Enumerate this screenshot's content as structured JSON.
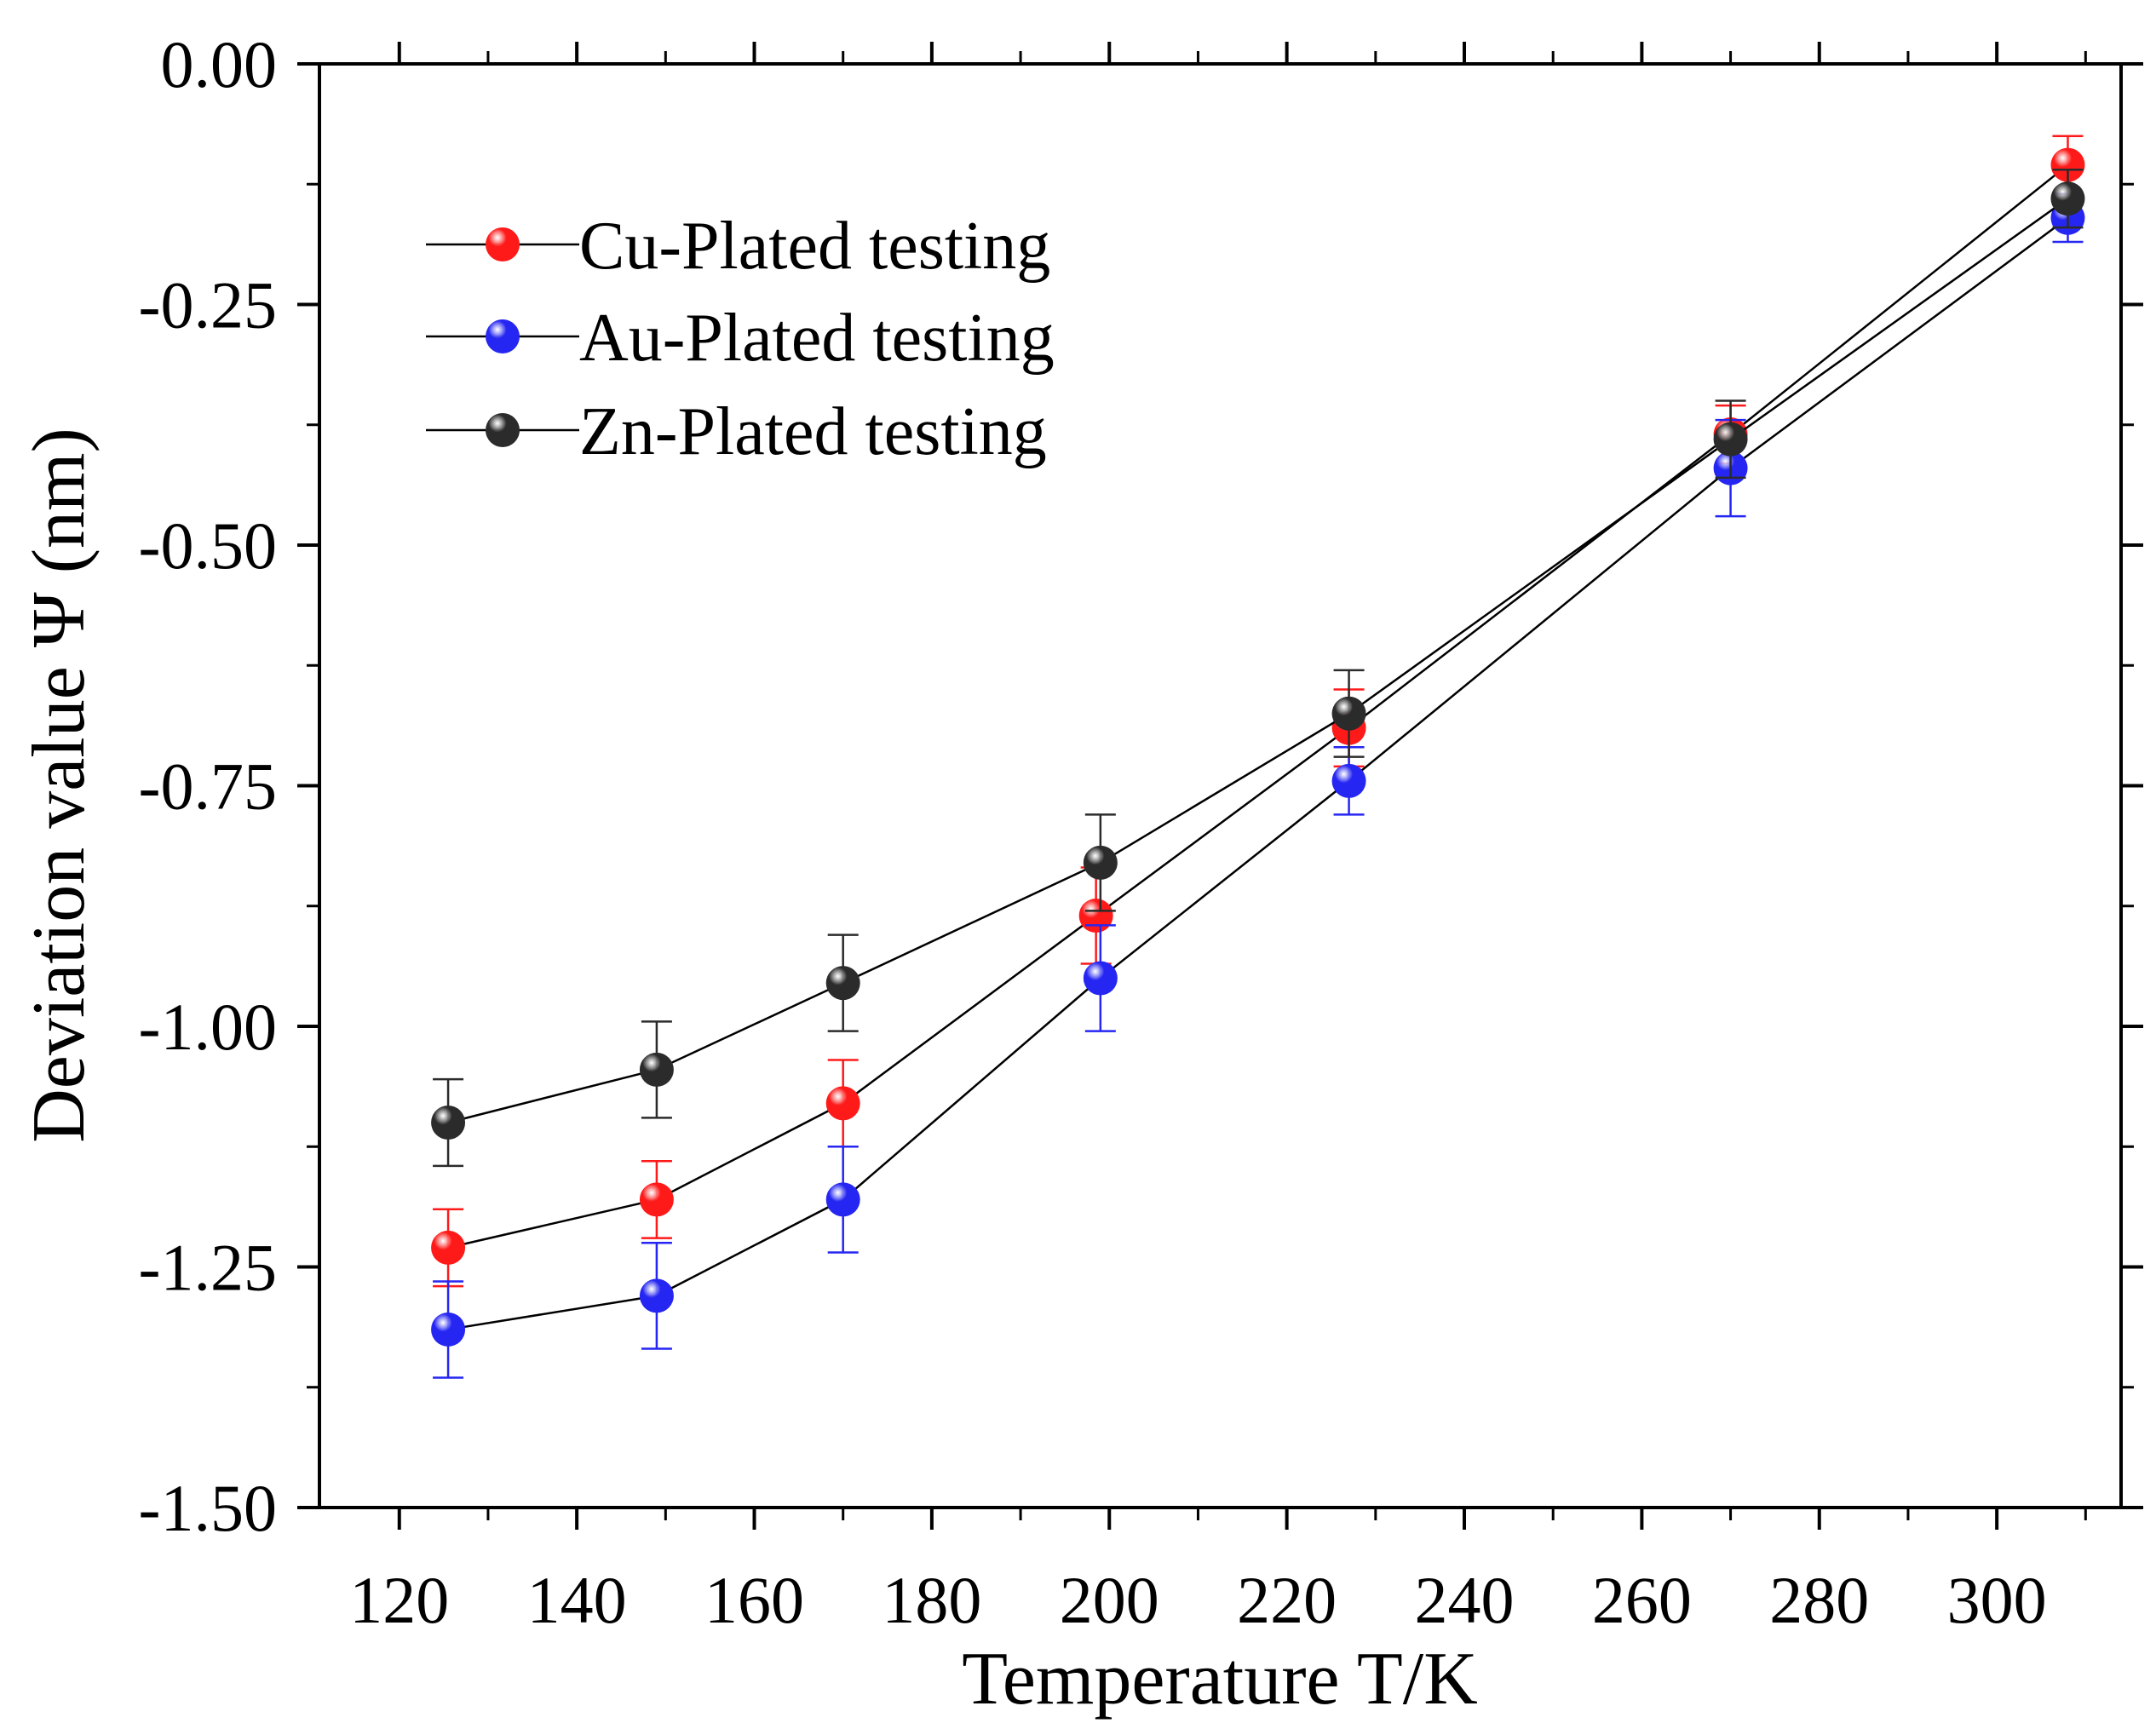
{
  "chart_data": {
    "type": "line",
    "title": "",
    "xlabel": "Temperature T/K",
    "ylabel": "Deviation value Ψ (nm)",
    "xlim": [
      111,
      314
    ],
    "ylim": [
      -1.5,
      0.0
    ],
    "x_ticks": [
      120,
      140,
      160,
      180,
      200,
      220,
      240,
      260,
      280,
      300
    ],
    "x_tick_labels": [
      "120",
      "140",
      "160",
      "180",
      "200",
      "220",
      "240",
      "260",
      "280",
      "300"
    ],
    "y_ticks": [
      0.0,
      -0.25,
      -0.5,
      -0.75,
      -1.0,
      -1.25,
      -1.5
    ],
    "y_tick_labels": [
      "0.00",
      "-0.25",
      "-0.50",
      "-0.75",
      "-1.00",
      "-1.25",
      "-1.50"
    ],
    "legend_position": "top-left",
    "grid": false,
    "series": [
      {
        "name": "Cu-Plated testing",
        "color": "#ff1a1a",
        "x": [
          125.5,
          149,
          170,
          198.5,
          227,
          270,
          308
        ],
        "values": [
          -1.23,
          -1.18,
          -1.08,
          -0.885,
          -0.69,
          -0.385,
          -0.105
        ],
        "errors": [
          0.04,
          0.04,
          0.045,
          0.05,
          0.04,
          0.03,
          0.03
        ]
      },
      {
        "name": "Au-Plated testing",
        "color": "#2626f2",
        "x": [
          125.5,
          149,
          170,
          199,
          227,
          270,
          308
        ],
        "values": [
          -1.315,
          -1.28,
          -1.18,
          -0.95,
          -0.745,
          -0.42,
          -0.16
        ],
        "errors": [
          0.05,
          0.055,
          0.055,
          0.055,
          0.035,
          0.05,
          0.025
        ]
      },
      {
        "name": "Zn-Plated testing",
        "color": "#2b2b2b",
        "x": [
          125.5,
          149,
          170,
          199,
          227,
          270,
          308
        ],
        "values": [
          -1.1,
          -1.045,
          -0.955,
          -0.83,
          -0.675,
          -0.39,
          -0.14
        ],
        "errors": [
          0.045,
          0.05,
          0.05,
          0.05,
          0.045,
          0.04,
          0.03
        ]
      }
    ]
  }
}
